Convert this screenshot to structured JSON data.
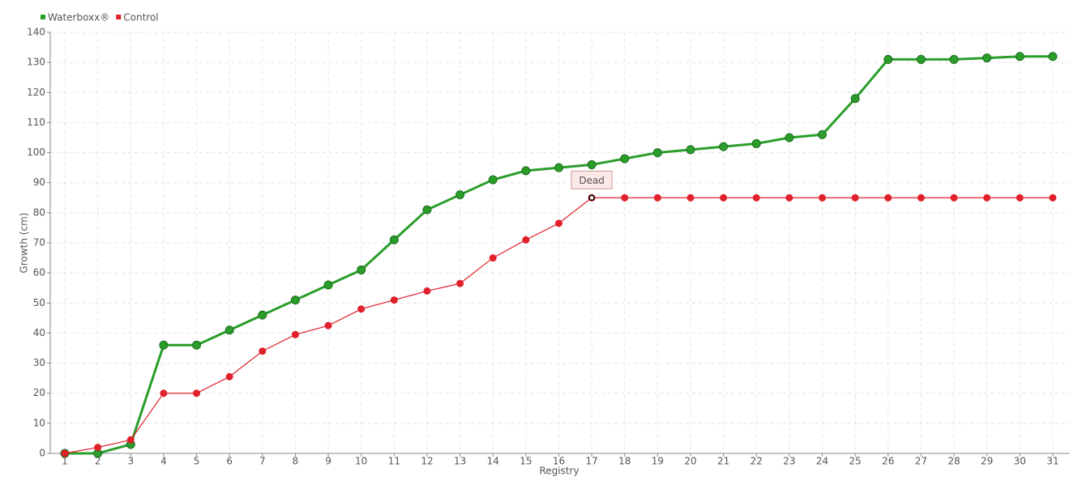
{
  "chart_data": {
    "type": "line",
    "x_label": "Registry",
    "y_label": "Growth (cm)",
    "categories": [
      "1",
      "2",
      "3",
      "4",
      "5",
      "6",
      "7",
      "8",
      "9",
      "10",
      "11",
      "12",
      "13",
      "14",
      "15",
      "16",
      "17",
      "18",
      "19",
      "20",
      "21",
      "22",
      "23",
      "24",
      "25",
      "26",
      "27",
      "28",
      "29",
      "30",
      "31"
    ],
    "series": [
      {
        "name": "Waterboxx®",
        "color": "#2a9d2a",
        "values": [
          0,
          0,
          3,
          36,
          36,
          41,
          46,
          51,
          56,
          61,
          71,
          81,
          86,
          91,
          94,
          95,
          96,
          98,
          100,
          101,
          102,
          103,
          105,
          106,
          118,
          131,
          131,
          131,
          131.5,
          132,
          132
        ]
      },
      {
        "name": "Control",
        "color": "#e0202a",
        "values": [
          0,
          2,
          4.5,
          20,
          20,
          25.5,
          34,
          39.5,
          42.5,
          48,
          51,
          54,
          56.5,
          65,
          71,
          76.5,
          85,
          85,
          85,
          85,
          85,
          85,
          85,
          85,
          85,
          85,
          85,
          85,
          85,
          85,
          85
        ]
      }
    ],
    "annotations": [
      {
        "text": "Dead",
        "x": "17",
        "y": 85
      }
    ],
    "ylim": [
      0,
      140
    ],
    "yticks": [
      0,
      10,
      20,
      30,
      40,
      50,
      60,
      70,
      80,
      90,
      100,
      110,
      120,
      130,
      140
    ],
    "grid": true,
    "legend": "top-left"
  }
}
